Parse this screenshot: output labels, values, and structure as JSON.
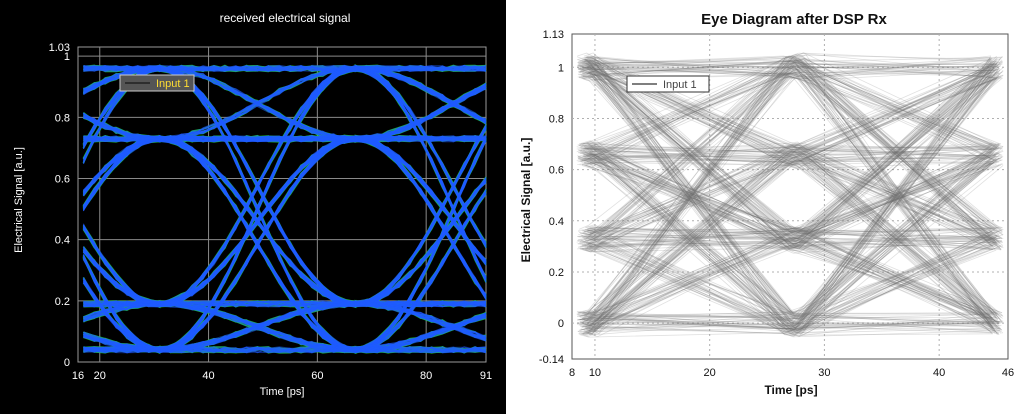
{
  "chart_data": [
    {
      "type": "line",
      "title": "received electrical signal",
      "xlabel": "Time [ps]",
      "ylabel": "Electrical Signal [a.u.]",
      "xlim": [
        16,
        91
      ],
      "ylim": [
        0,
        1.03
      ],
      "x_ticks": [
        16,
        20,
        40,
        60,
        80,
        91
      ],
      "y_ticks": [
        0,
        0.2,
        0.4,
        0.6,
        0.8,
        1,
        1.03
      ],
      "grid": true,
      "legend_position": "top-left",
      "background": "#000000",
      "series": [
        {
          "name": "Input 1",
          "color": "#1f5bff",
          "envelope_color": "#22dd22",
          "levels": [
            0.04,
            0.19,
            0.73,
            0.96
          ],
          "crossing_times": [
            31,
            67
          ],
          "eye_centers": [
            49,
            86
          ]
        }
      ]
    },
    {
      "type": "line",
      "title": "Eye Diagram after DSP Rx",
      "xlabel": "Time [ps]",
      "ylabel": "Electrical Signal [a.u.]",
      "xlim": [
        8,
        46
      ],
      "ylim": [
        -0.14,
        1.13
      ],
      "x_ticks": [
        8,
        10,
        20,
        30,
        40,
        46
      ],
      "y_ticks": [
        -0.14,
        0,
        0.2,
        0.4,
        0.6,
        0.8,
        1,
        1.13
      ],
      "grid": true,
      "legend_position": "top-left",
      "background": "#ffffff",
      "series": [
        {
          "name": "Input 1",
          "color": "#707070",
          "levels": [
            0.0,
            0.33,
            0.66,
            1.0
          ],
          "sample_times": [
            9,
            27,
            45
          ]
        }
      ]
    }
  ]
}
